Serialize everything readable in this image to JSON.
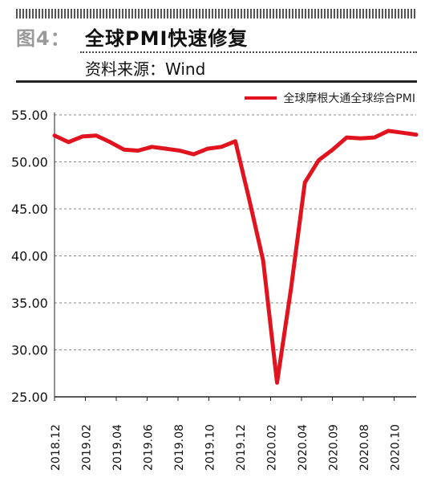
{
  "header": {
    "figure_label": "图4：",
    "title": "全球PMI快速修复",
    "source": "资料来源：Wind"
  },
  "colors": {
    "series": "#e1131e",
    "label_gray": "#9a9a9a"
  },
  "chart_data": {
    "type": "line",
    "title": "全球PMI快速修复",
    "xlabel": "",
    "ylabel": "",
    "ylim": [
      25,
      55
    ],
    "yticks": [
      "55.00",
      "50.00",
      "45.00",
      "40.00",
      "35.00",
      "30.00",
      "25.00"
    ],
    "x_tick_labels": [
      "2018.12",
      "2019.02",
      "2019.04",
      "2019.06",
      "2019.08",
      "2019.10",
      "2019.12",
      "2020.02",
      "2020.04",
      "2020.09",
      "2020.08",
      "2020.10"
    ],
    "grid": "horizontal dashed",
    "legend_position": "top-right",
    "series": [
      {
        "name": "全球摩根大通全球综合PMI",
        "color": "#e1131e",
        "values": [
          52.8,
          52.1,
          52.7,
          52.8,
          52.1,
          51.3,
          51.2,
          51.6,
          51.4,
          51.2,
          50.8,
          51.4,
          51.6,
          52.2,
          46.0,
          39.5,
          26.5,
          36.5,
          47.8,
          50.2,
          51.3,
          52.6,
          52.5,
          52.6,
          53.3,
          53.1,
          52.9
        ]
      }
    ]
  }
}
